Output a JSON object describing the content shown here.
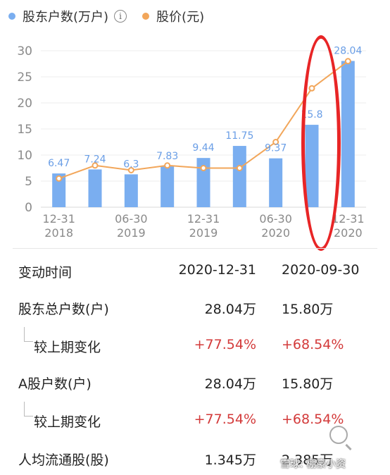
{
  "legend": {
    "holders_label": "股东户数(万户)",
    "info_glyph": "i",
    "price_label": "股价(元)",
    "holders_color": "#7aaef0",
    "price_color": "#f2a65a"
  },
  "chart_data": {
    "type": "bar",
    "categories": [
      "2018-12-31",
      "2019-03-31",
      "2019-06-30",
      "2019-09-30",
      "2019-12-31",
      "2020-03-31",
      "2020-06-30",
      "2020-09-30",
      "2020-12-31"
    ],
    "x_tick_labels": [
      {
        "top": "12-31",
        "bottom": "2018"
      },
      {
        "top": "06-30",
        "bottom": "2019"
      },
      {
        "top": "12-31",
        "bottom": "2019"
      },
      {
        "top": "06-30",
        "bottom": "2020"
      },
      {
        "top": "12-31",
        "bottom": "2020"
      }
    ],
    "x_tick_index": [
      0,
      2,
      4,
      6,
      8
    ],
    "series": [
      {
        "name": "股东户数(万户)",
        "type": "bar",
        "values": [
          6.47,
          7.24,
          6.3,
          7.83,
          9.44,
          11.75,
          9.37,
          15.8,
          28.04
        ],
        "labels": [
          "6.47",
          "7.24",
          "6.3",
          "7.83",
          "9.44",
          "11.75",
          "9.37",
          "15.8",
          "28.04"
        ]
      },
      {
        "name": "股价(元)",
        "type": "line",
        "values": [
          5.5,
          8.0,
          7.1,
          8.0,
          7.5,
          7.5,
          12.5,
          22.8,
          28.0
        ]
      }
    ],
    "yticks": [
      0,
      5,
      10,
      15,
      20,
      25,
      30
    ],
    "ylim": [
      0,
      30
    ]
  },
  "table": {
    "header": {
      "label": "变动时间",
      "col1": "2020-12-31",
      "col2": "2020-09-30"
    },
    "rows": [
      {
        "label": "股东总户数(户)",
        "col1": "28.04万",
        "col2": "15.80万",
        "sub": false
      },
      {
        "label": "较上期变化",
        "col1": "+77.54%",
        "col2": "+68.54%",
        "sub": true
      },
      {
        "label": "A股户数(户)",
        "col1": "28.04万",
        "col2": "15.80万",
        "sub": false
      },
      {
        "label": "较上期变化",
        "col1": "+77.54%",
        "col2": "+68.54%",
        "sub": true
      },
      {
        "label": "人均流通股(股)",
        "col1": "1.345万",
        "col2": "2.385万",
        "sub": false
      }
    ]
  },
  "watermark": "雪球: 棚豪小资"
}
